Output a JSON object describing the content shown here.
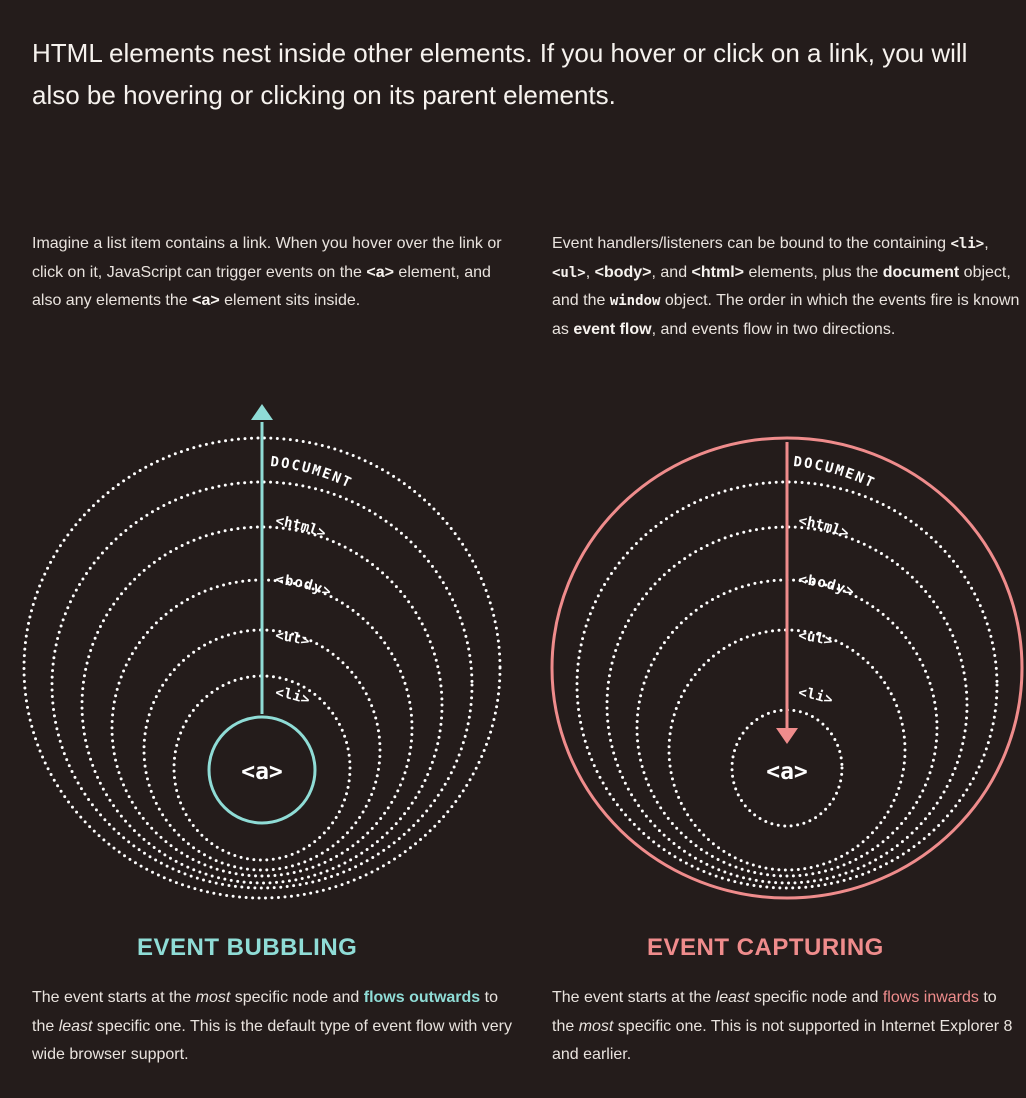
{
  "headline": "HTML elements nest inside other elements. If you hover or click on a link, you will also be hovering or clicking on its parent elements.",
  "intro_left": {
    "t1": "Imagine a list item contains a link. When you hover over the link or click on it, JavaScript can trigger events on the ",
    "a1": "<a>",
    "t2": " element, and also any elements the ",
    "a2": "<a>",
    "t3": " element sits inside."
  },
  "intro_right": {
    "t1": "Event handlers/listeners can be bound to the containing ",
    "li": "<li>",
    "c1": ", ",
    "ul": "<ul>",
    "c2": ", ",
    "body": "<body>",
    "c3": ", and ",
    "html": "<html>",
    "t2": " elements, plus the ",
    "document": "document",
    "t3": " object, and the ",
    "window": "window",
    "t4": " object. The order in which the events fire is known as ",
    "event_flow": "event flow",
    "t5": ", and events flow in two directions."
  },
  "labels": {
    "document": "DOCUMENT",
    "html": "<html>",
    "body": "<body>",
    "ul": "<ul>",
    "li": "<li>",
    "a": "<a>"
  },
  "bubbling": {
    "title": "EVENT BUBBLING",
    "t1": "The event starts at the ",
    "most": "most",
    "t2": " specific node and ",
    "flows": "flows outwards",
    "t3": " to the ",
    "least": "least",
    "t4": " specific one. This is the default type of event flow with very wide browser support."
  },
  "capturing": {
    "title": "EVENT CAPTURING",
    "t1": "The event starts at the ",
    "least": "least",
    "t2": " specific node and ",
    "flows": "flows inwards",
    "t3": " to the ",
    "most": "most",
    "t4": " specific one. This is not supported in Internet Explorer 8 and earlier."
  },
  "colors": {
    "background": "#241c1b",
    "teal": "#8fdcd6",
    "pink": "#ef8c8c",
    "dots": "#ffffff"
  }
}
